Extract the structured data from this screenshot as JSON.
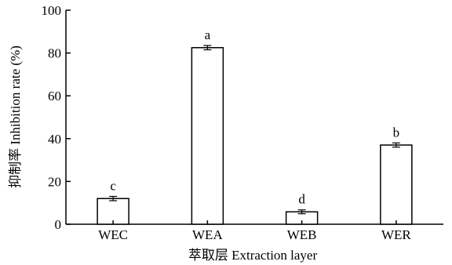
{
  "chart_data": {
    "type": "bar",
    "categories": [
      "WEC",
      "WEA",
      "WEB",
      "WER"
    ],
    "values": [
      12.0,
      82.5,
      5.8,
      37.0
    ],
    "errors": [
      1.0,
      1.0,
      0.9,
      1.0
    ],
    "significance_letters": [
      "c",
      "a",
      "d",
      "b"
    ],
    "xlabel": "萃取层 Extraction layer",
    "ylabel": "抑制率 Inhibition rate (%)",
    "ylim": [
      0,
      100
    ],
    "yticks": [
      "0",
      "20",
      "40",
      "60",
      "80",
      "100"
    ],
    "grid": false,
    "legend": "none",
    "colors": {
      "bar_fill": "#ffffff",
      "bar_stroke": "#000000",
      "axis": "#000000"
    }
  }
}
